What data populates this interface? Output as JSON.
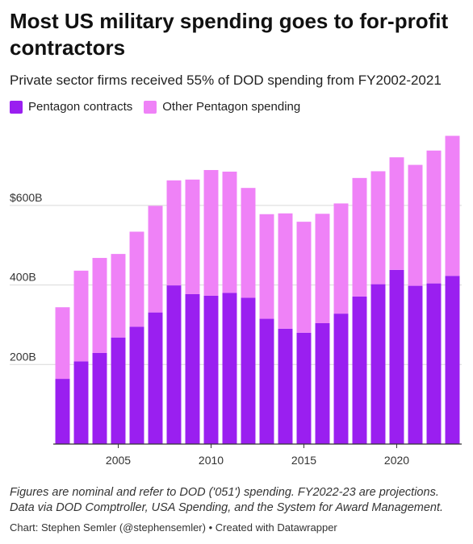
{
  "header": {
    "title": "Most US military spending goes to for-profit contractors",
    "subtitle": "Private sector firms received 55% of DOD spending from FY2002-2021"
  },
  "legend": [
    {
      "label": "Pentagon contracts",
      "color": "#9a1ff0"
    },
    {
      "label": "Other Pentagon spending",
      "color": "#ef82f7"
    }
  ],
  "footer": {
    "note_line1": "Figures are nominal and refer to DOD ('051') spending. FY2022-23 are projections.",
    "note_line2": "Data via DOD Comptroller, USA Spending, and the System for Award Management.",
    "credit": "Chart: Stephen Semler (@stephensemler) • Created with Datawrapper"
  },
  "chart_data": {
    "type": "bar",
    "stacked": true,
    "categories": [
      2002,
      2003,
      2004,
      2005,
      2006,
      2007,
      2008,
      2009,
      2010,
      2011,
      2012,
      2013,
      2014,
      2015,
      2016,
      2017,
      2018,
      2019,
      2020,
      2021,
      2022,
      2023
    ],
    "series": [
      {
        "name": "Pentagon contracts",
        "color": "#9a1ff0",
        "values": [
          164,
          208,
          229,
          268,
          295,
          331,
          399,
          377,
          373,
          380,
          368,
          315,
          290,
          280,
          304,
          328,
          371,
          402,
          438,
          398,
          404,
          423
        ]
      },
      {
        "name": "Other Pentagon spending",
        "color": "#ef82f7",
        "values": [
          180,
          228,
          239,
          210,
          239,
          268,
          264,
          288,
          316,
          305,
          276,
          263,
          290,
          279,
          275,
          277,
          298,
          284,
          283,
          304,
          334,
          352
        ]
      }
    ],
    "ylim": [
      0,
      780
    ],
    "yticks": [
      {
        "value": 200,
        "label": "200B"
      },
      {
        "value": 400,
        "label": "400B"
      },
      {
        "value": 600,
        "label": "$600B"
      }
    ],
    "xticks": [
      {
        "value": 2005,
        "label": "2005"
      },
      {
        "value": 2010,
        "label": "2010"
      },
      {
        "value": 2015,
        "label": "2015"
      },
      {
        "value": 2020,
        "label": "2020"
      }
    ],
    "grid": true,
    "legend_position": "top-left"
  }
}
